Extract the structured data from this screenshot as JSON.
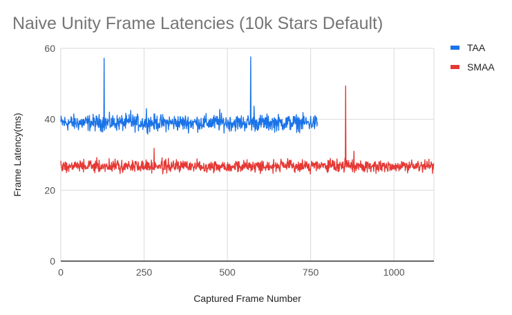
{
  "chart_data": {
    "type": "line",
    "title": "Naive Unity Frame Latencies (10k Stars Default)",
    "xlabel": "Captured Frame Number",
    "ylabel": "Frame Latency(ms)",
    "xlim": [
      0,
      1120
    ],
    "ylim": [
      0,
      60
    ],
    "x_ticks": [
      "0",
      "250",
      "500",
      "750",
      "1000"
    ],
    "y_ticks": [
      "0",
      "20",
      "40",
      "60"
    ],
    "grid": true,
    "legend_position": "right",
    "series": [
      {
        "name": "TAA",
        "color": "#1a73e8",
        "x_range": [
          0,
          770
        ],
        "baseline": 39,
        "noise": 1.6,
        "spikes": [
          [
            130,
            57.2
          ],
          [
            210,
            42.5
          ],
          [
            257,
            43
          ],
          [
            477,
            42.8
          ],
          [
            570,
            57.6
          ],
          [
            580,
            43.7
          ]
        ]
      },
      {
        "name": "SMAA",
        "color": "#e53935",
        "x_range": [
          0,
          1120
        ],
        "baseline": 26.8,
        "noise": 1.2,
        "spikes": [
          [
            280,
            31.8
          ],
          [
            855,
            49.4
          ],
          [
            880,
            31
          ]
        ]
      }
    ]
  }
}
